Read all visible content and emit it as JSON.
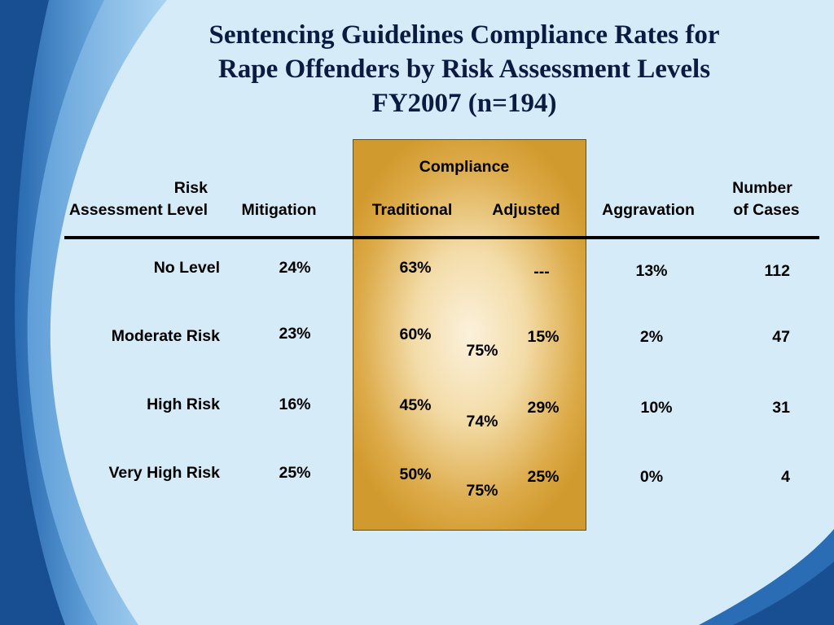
{
  "title": {
    "line1": "Sentencing Guidelines Compliance Rates for",
    "line2": "Rape Offenders by Risk Assessment Levels",
    "line3": "FY2007 (n=194)"
  },
  "headers": {
    "compliance": "Compliance",
    "risk_line1": "Risk",
    "risk_line2": "Assessment Level",
    "mitigation": "Mitigation",
    "traditional": "Traditional",
    "adjusted": "Adjusted",
    "aggravation": "Aggravation",
    "cases_line1": "Number",
    "cases_line2": "of Cases"
  },
  "rows": [
    {
      "level": "No Level",
      "mitigation": "24%",
      "traditional": "63%",
      "combined": "",
      "adjusted": "---",
      "aggravation": "13%",
      "cases": "112"
    },
    {
      "level": "Moderate Risk",
      "mitigation": "23%",
      "traditional": "60%",
      "combined": "75%",
      "adjusted": "15%",
      "aggravation": "2%",
      "cases": "47"
    },
    {
      "level": "High Risk",
      "mitigation": "16%",
      "traditional": "45%",
      "combined": "74%",
      "adjusted": "29%",
      "aggravation": "10%",
      "cases": "31"
    },
    {
      "level": "Very High Risk",
      "mitigation": "25%",
      "traditional": "50%",
      "combined": "75%",
      "adjusted": "25%",
      "aggravation": "0%",
      "cases": "4"
    }
  ],
  "colors": {
    "background": "#d6ebf8",
    "swoosh_dark": "#1d5ea8",
    "swoosh_light": "#8ec3ea",
    "highlight": "#d19a2e",
    "title": "#0b1a40"
  }
}
